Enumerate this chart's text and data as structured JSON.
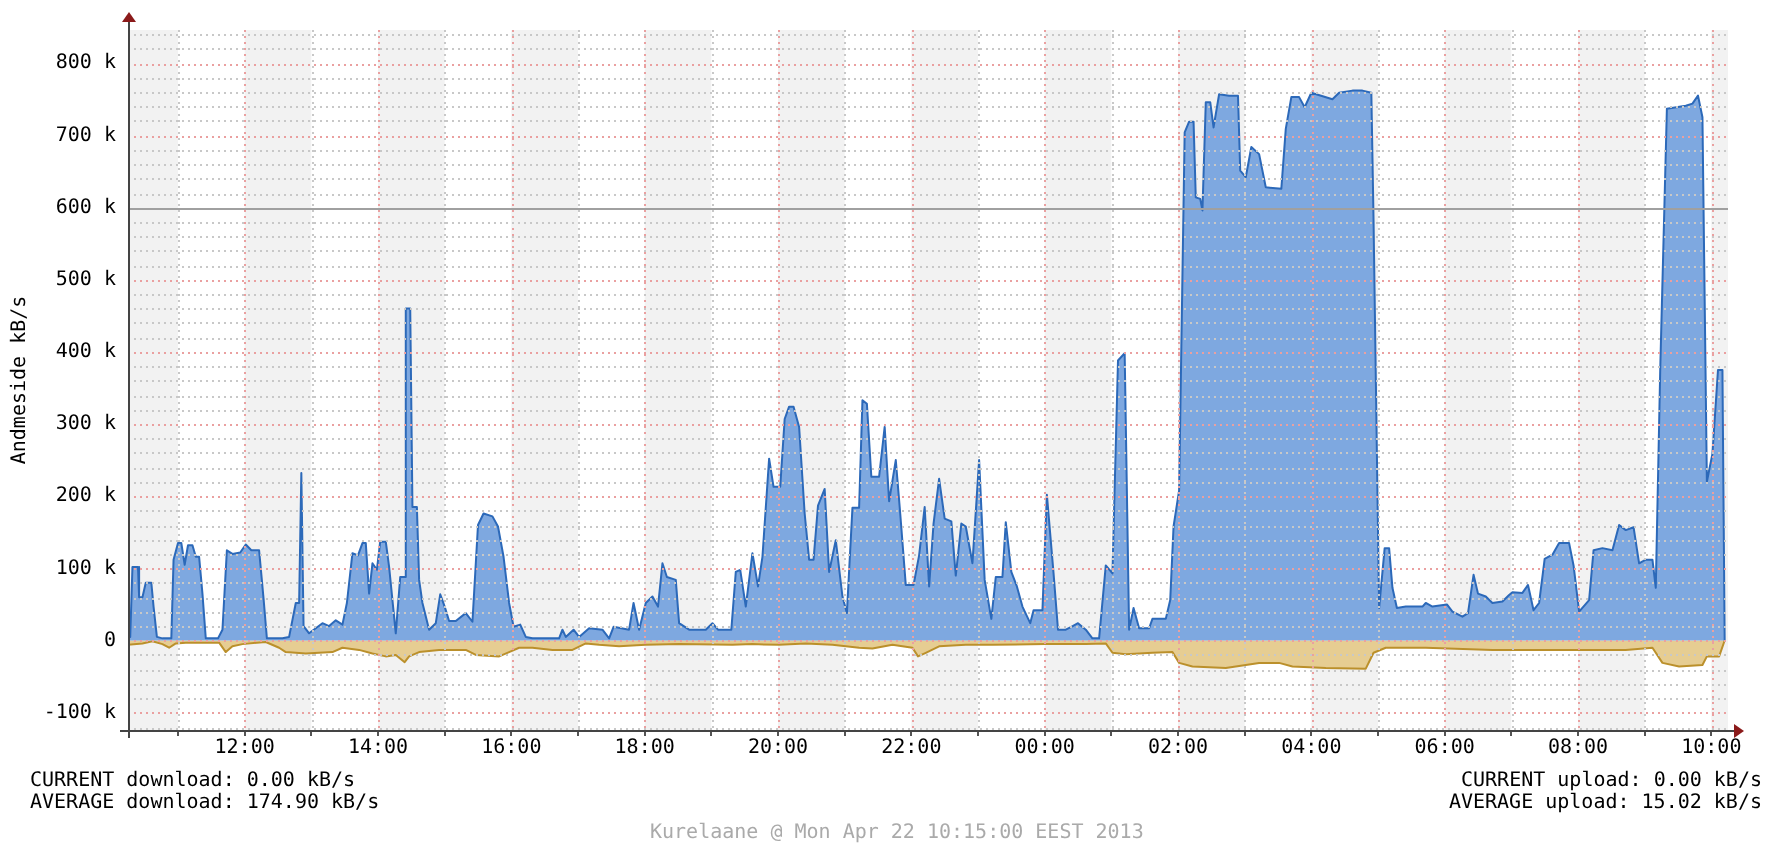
{
  "chart_data": {
    "type": "area",
    "ylabel": "Andmeside kB/s",
    "grid": true,
    "marker": "none",
    "xlim": [
      "2013-04-21T10:15",
      "2013-04-22T10:15"
    ],
    "xticks": [
      {
        "value": "2013-04-21T11:00",
        "label": null
      },
      {
        "value": "2013-04-21T12:00",
        "label": "12:00"
      },
      {
        "value": "2013-04-21T13:00",
        "label": null
      },
      {
        "value": "2013-04-21T14:00",
        "label": "14:00"
      },
      {
        "value": "2013-04-21T15:00",
        "label": null
      },
      {
        "value": "2013-04-21T16:00",
        "label": "16:00"
      },
      {
        "value": "2013-04-21T17:00",
        "label": null
      },
      {
        "value": "2013-04-21T18:00",
        "label": "18:00"
      },
      {
        "value": "2013-04-21T19:00",
        "label": null
      },
      {
        "value": "2013-04-21T20:00",
        "label": "20:00"
      },
      {
        "value": "2013-04-21T21:00",
        "label": null
      },
      {
        "value": "2013-04-21T22:00",
        "label": "22:00"
      },
      {
        "value": "2013-04-21T23:00",
        "label": null
      },
      {
        "value": "2013-04-22T00:00",
        "label": "00:00"
      },
      {
        "value": "2013-04-22T01:00",
        "label": null
      },
      {
        "value": "2013-04-22T02:00",
        "label": "02:00"
      },
      {
        "value": "2013-04-22T03:00",
        "label": null
      },
      {
        "value": "2013-04-22T04:00",
        "label": "04:00"
      },
      {
        "value": "2013-04-22T05:00",
        "label": null
      },
      {
        "value": "2013-04-22T06:00",
        "label": "06:00"
      },
      {
        "value": "2013-04-22T07:00",
        "label": null
      },
      {
        "value": "2013-04-22T08:00",
        "label": "08:00"
      },
      {
        "value": "2013-04-22T09:00",
        "label": null
      },
      {
        "value": "2013-04-22T10:00",
        "label": "10:00"
      }
    ],
    "ylim": [
      -124000,
      846000
    ],
    "yticks": [
      {
        "value": -120000,
        "label": null
      },
      {
        "value": -100000,
        "label": "-100 k"
      },
      {
        "value": -80000,
        "label": null
      },
      {
        "value": -60000,
        "label": null
      },
      {
        "value": -40000,
        "label": null
      },
      {
        "value": -20000,
        "label": null
      },
      0,
      {
        "value": 20000,
        "label": null
      },
      {
        "value": 40000,
        "label": null
      },
      {
        "value": 60000,
        "label": null
      },
      {
        "value": 80000,
        "label": null
      },
      {
        "value": 100000,
        "label": "100 k"
      },
      {
        "value": 120000,
        "label": null
      },
      {
        "value": 140000,
        "label": null
      },
      {
        "value": 160000,
        "label": null
      },
      {
        "value": 180000,
        "label": null
      },
      {
        "value": 200000,
        "label": "200 k"
      },
      {
        "value": 220000,
        "label": null
      },
      {
        "value": 240000,
        "label": null
      },
      {
        "value": 260000,
        "label": null
      },
      {
        "value": 280000,
        "label": null
      },
      {
        "value": 300000,
        "label": "300 k"
      },
      {
        "value": 320000,
        "label": null
      },
      {
        "value": 340000,
        "label": null
      },
      {
        "value": 360000,
        "label": null
      },
      {
        "value": 380000,
        "label": null
      },
      {
        "value": 400000,
        "label": "400 k"
      },
      {
        "value": 420000,
        "label": null
      },
      {
        "value": 440000,
        "label": null
      },
      {
        "value": 460000,
        "label": null
      },
      {
        "value": 480000,
        "label": null
      },
      {
        "value": 500000,
        "label": "500 k"
      },
      {
        "value": 520000,
        "label": null
      },
      {
        "value": 540000,
        "label": null
      },
      {
        "value": 560000,
        "label": null
      },
      {
        "value": 580000,
        "label": null
      },
      {
        "value": 600000,
        "label": "600 k"
      },
      {
        "value": 620000,
        "label": null
      },
      {
        "value": 640000,
        "label": null
      },
      {
        "value": 660000,
        "label": null
      },
      {
        "value": 680000,
        "label": null
      },
      {
        "value": 700000,
        "label": "700 k"
      },
      {
        "value": 720000,
        "label": null
      },
      {
        "value": 740000,
        "label": null
      },
      {
        "value": 760000,
        "label": null
      },
      {
        "value": 780000,
        "label": null
      },
      {
        "value": 800000,
        "label": "800 k"
      },
      {
        "value": 820000,
        "label": null
      },
      {
        "value": 840000,
        "label": null
      }
    ],
    "bands": [
      {
        "axis": "x",
        "from": "2013-04-21T10:15",
        "to": "2013-04-21T11:00",
        "color": "#f2f2f2"
      },
      {
        "axis": "x",
        "from": "2013-04-21T12:00",
        "to": "2013-04-21T13:00",
        "color": "#f2f2f2"
      },
      {
        "axis": "x",
        "from": "2013-04-21T14:00",
        "to": "2013-04-21T15:00",
        "color": "#f2f2f2"
      },
      {
        "axis": "x",
        "from": "2013-04-21T16:00",
        "to": "2013-04-21T17:00",
        "color": "#f2f2f2"
      },
      {
        "axis": "x",
        "from": "2013-04-21T18:00",
        "to": "2013-04-21T19:00",
        "color": "#f2f2f2"
      },
      {
        "axis": "x",
        "from": "2013-04-21T20:00",
        "to": "2013-04-21T21:00",
        "color": "#f2f2f2"
      },
      {
        "axis": "x",
        "from": "2013-04-21T22:00",
        "to": "2013-04-21T23:00",
        "color": "#f2f2f2"
      },
      {
        "axis": "x",
        "from": "2013-04-22T00:00",
        "to": "2013-04-22T01:00",
        "color": "#f2f2f2"
      },
      {
        "axis": "x",
        "from": "2013-04-22T02:00",
        "to": "2013-04-22T03:00",
        "color": "#f2f2f2"
      },
      {
        "axis": "x",
        "from": "2013-04-22T04:00",
        "to": "2013-04-22T05:00",
        "color": "#f2f2f2"
      },
      {
        "axis": "x",
        "from": "2013-04-22T06:00",
        "to": "2013-04-22T07:00",
        "color": "#f2f2f2"
      },
      {
        "axis": "x",
        "from": "2013-04-22T08:00",
        "to": "2013-04-22T09:00",
        "color": "#f2f2f2"
      },
      {
        "axis": "x",
        "from": "2013-04-22T10:00",
        "to": "2013-04-22T10:15",
        "color": "#f2f2f2"
      }
    ],
    "ref_lines": [
      {
        "axis": "y",
        "value": 600000,
        "color": "#a0a0a0"
      }
    ],
    "series": [
      {
        "color": "#7ea8e0",
        "x": [
          "2013-04-21T10:15",
          "2013-04-21T10:17",
          "2013-04-21T10:19",
          "2013-04-21T10:24",
          "2013-04-21T10:25",
          "2013-04-21T10:28",
          "2013-04-21T10:31",
          "2013-04-21T10:36",
          "2013-04-21T10:38",
          "2013-04-21T10:41",
          "2013-04-21T10:46",
          "2013-04-21T10:54",
          "2013-04-21T10:56",
          "2013-04-21T11:00",
          "2013-04-21T11:03",
          "2013-04-21T11:06",
          "2013-04-21T11:09",
          "2013-04-21T11:13",
          "2013-04-21T11:16",
          "2013-04-21T11:19",
          "2013-04-21T11:22",
          "2013-04-21T11:25",
          "2013-04-21T11:36",
          "2013-04-21T11:40",
          "2013-04-21T11:44",
          "2013-04-21T11:49",
          "2013-04-21T11:56",
          "2013-04-21T12:01",
          "2013-04-21T12:06",
          "2013-04-21T12:13",
          "2013-04-21T12:17",
          "2013-04-21T12:20",
          "2013-04-21T12:34",
          "2013-04-21T12:40",
          "2013-04-21T12:46",
          "2013-04-21T12:49",
          "2013-04-21T12:51",
          "2013-04-21T12:53",
          "2013-04-21T12:58",
          "2013-04-21T13:10",
          "2013-04-21T13:16",
          "2013-04-21T13:22",
          "2013-04-21T13:28",
          "2013-04-21T13:32",
          "2013-04-21T13:37",
          "2013-04-21T13:42",
          "2013-04-21T13:46",
          "2013-04-21T13:49",
          "2013-04-21T13:52",
          "2013-04-21T13:55",
          "2013-04-21T13:59",
          "2013-04-21T14:02",
          "2013-04-21T14:07",
          "2013-04-21T14:10",
          "2013-04-21T14:16",
          "2013-04-21T14:20",
          "2013-04-21T14:24",
          "2013-04-21T14:25",
          "2013-04-21T14:29",
          "2013-04-21T14:31",
          "2013-04-21T14:35",
          "2013-04-21T14:37",
          "2013-04-21T14:40",
          "2013-04-21T14:46",
          "2013-04-21T14:52",
          "2013-04-21T14:56",
          "2013-04-21T15:00",
          "2013-04-21T15:04",
          "2013-04-21T15:10",
          "2013-04-21T15:19",
          "2013-04-21T15:25",
          "2013-04-21T15:30",
          "2013-04-21T15:35",
          "2013-04-21T15:43",
          "2013-04-21T15:48",
          "2013-04-21T15:53",
          "2013-04-21T15:58",
          "2013-04-21T16:02",
          "2013-04-21T16:08",
          "2013-04-21T16:13",
          "2013-04-21T16:19",
          "2013-04-21T16:43",
          "2013-04-21T16:46",
          "2013-04-21T16:49",
          "2013-04-21T16:56",
          "2013-04-21T17:01",
          "2013-04-21T17:10",
          "2013-04-21T17:22",
          "2013-04-21T17:28",
          "2013-04-21T17:32",
          "2013-04-21T17:46",
          "2013-04-21T17:50",
          "2013-04-21T17:55",
          "2013-04-21T18:01",
          "2013-04-21T18:07",
          "2013-04-21T18:12",
          "2013-04-21T18:16",
          "2013-04-21T18:20",
          "2013-04-21T18:28",
          "2013-04-21T18:31",
          "2013-04-21T18:40",
          "2013-04-21T18:55",
          "2013-04-21T19:01",
          "2013-04-21T19:06",
          "2013-04-21T19:18",
          "2013-04-21T19:22",
          "2013-04-21T19:26",
          "2013-04-21T19:31",
          "2013-04-21T19:37",
          "2013-04-21T19:42",
          "2013-04-21T19:46",
          "2013-04-21T19:52",
          "2013-04-21T19:56",
          "2013-04-21T20:02",
          "2013-04-21T20:06",
          "2013-04-21T20:10",
          "2013-04-21T20:14",
          "2013-04-21T20:19",
          "2013-04-21T20:24",
          "2013-04-21T20:28",
          "2013-04-21T20:32",
          "2013-04-21T20:36",
          "2013-04-21T20:42",
          "2013-04-21T20:46",
          "2013-04-21T20:52",
          "2013-04-21T20:58",
          "2013-04-21T21:02",
          "2013-04-21T21:07",
          "2013-04-21T21:13",
          "2013-04-21T21:16",
          "2013-04-21T21:20",
          "2013-04-21T21:24",
          "2013-04-21T21:31",
          "2013-04-21T21:36",
          "2013-04-21T21:40",
          "2013-04-21T21:46",
          "2013-04-21T21:50",
          "2013-04-21T21:55",
          "2013-04-21T22:02",
          "2013-04-21T22:07",
          "2013-04-21T22:12",
          "2013-04-21T22:16",
          "2013-04-21T22:20",
          "2013-04-21T22:25",
          "2013-04-21T22:30",
          "2013-04-21T22:36",
          "2013-04-21T22:40",
          "2013-04-21T22:45",
          "2013-04-21T22:49",
          "2013-04-21T22:55",
          "2013-04-21T23:01",
          "2013-04-21T23:06",
          "2013-04-21T23:12",
          "2013-04-21T23:16",
          "2013-04-21T23:22",
          "2013-04-21T23:25",
          "2013-04-21T23:30",
          "2013-04-21T23:35",
          "2013-04-21T23:40",
          "2013-04-21T23:47",
          "2013-04-21T23:50",
          "2013-04-21T23:58",
          "2013-04-22T00:02",
          "2013-04-22T00:08",
          "2013-04-22T00:12",
          "2013-04-22T00:19",
          "2013-04-22T00:24",
          "2013-04-22T00:30",
          "2013-04-22T00:37",
          "2013-04-22T00:43",
          "2013-04-22T00:49",
          "2013-04-22T00:55",
          "2013-04-22T01:01",
          "2013-04-22T01:06",
          "2013-04-22T01:12",
          "2013-04-22T01:16",
          "2013-04-22T01:20",
          "2013-04-22T01:25",
          "2013-04-22T01:34",
          "2013-04-22T01:37",
          "2013-04-22T01:49",
          "2013-04-22T01:53",
          "2013-04-22T01:56",
          "2013-04-22T02:01",
          "2013-04-22T02:06",
          "2013-04-22T02:10",
          "2013-04-22T02:14",
          "2013-04-22T02:16",
          "2013-04-22T02:20",
          "2013-04-22T02:22",
          "2013-04-22T02:25",
          "2013-04-22T02:29",
          "2013-04-22T02:32",
          "2013-04-22T02:37",
          "2013-04-22T02:46",
          "2013-04-22T02:54",
          "2013-04-22T02:56",
          "2013-04-22T03:01",
          "2013-04-22T03:06",
          "2013-04-22T03:13",
          "2013-04-22T03:19",
          "2013-04-22T03:33",
          "2013-04-22T03:37",
          "2013-04-22T03:42",
          "2013-04-22T03:49",
          "2013-04-22T03:54",
          "2013-04-22T04:00",
          "2013-04-22T04:19",
          "2013-04-22T04:25",
          "2013-04-22T04:37",
          "2013-04-22T04:46",
          "2013-04-22T04:54",
          "2013-04-22T04:56",
          "2013-04-22T05:01",
          "2013-04-22T05:06",
          "2013-04-22T05:10",
          "2013-04-22T05:13",
          "2013-04-22T05:17",
          "2013-04-22T05:25",
          "2013-04-22T05:40",
          "2013-04-22T05:43",
          "2013-04-22T05:49",
          "2013-04-22T06:02",
          "2013-04-22T06:07",
          "2013-04-22T06:16",
          "2013-04-22T06:21",
          "2013-04-22T06:26",
          "2013-04-22T06:30",
          "2013-04-22T06:37",
          "2013-04-22T06:43",
          "2013-04-22T06:52",
          "2013-04-22T06:58",
          "2013-04-22T07:01",
          "2013-04-22T07:10",
          "2013-04-22T07:15",
          "2013-04-22T07:20",
          "2013-04-22T07:25",
          "2013-04-22T07:30",
          "2013-04-22T07:37",
          "2013-04-22T07:43",
          "2013-04-22T07:52",
          "2013-04-22T07:56",
          "2013-04-22T08:01",
          "2013-04-22T08:10",
          "2013-04-22T08:14",
          "2013-04-22T08:22",
          "2013-04-22T08:31",
          "2013-04-22T08:37",
          "2013-04-22T08:43",
          "2013-04-22T08:50",
          "2013-04-22T08:55",
          "2013-04-22T09:01",
          "2013-04-22T09:07",
          "2013-04-22T09:10",
          "2013-04-22T09:14",
          "2013-04-22T09:20",
          "2013-04-22T09:37",
          "2013-04-22T09:43",
          "2013-04-22T09:48",
          "2013-04-22T09:52",
          "2013-04-22T09:56",
          "2013-04-22T10:01",
          "2013-04-22T10:06",
          "2013-04-22T10:10",
          "2013-04-22T10:12"
        ],
        "values": [
          5000,
          5000,
          102000,
          102000,
          60000,
          60000,
          80000,
          80000,
          47000,
          5000,
          3000,
          3000,
          112000,
          135000,
          135000,
          105000,
          132000,
          132000,
          116000,
          116000,
          65000,
          3000,
          3000,
          15000,
          125000,
          120000,
          122000,
          133000,
          125000,
          125000,
          58000,
          3000,
          3000,
          5000,
          52000,
          52000,
          232000,
          20000,
          10000,
          24000,
          20000,
          28000,
          22000,
          52000,
          121000,
          118000,
          135000,
          135000,
          65000,
          107000,
          98000,
          137000,
          137000,
          102000,
          10000,
          88000,
          88000,
          460000,
          460000,
          185000,
          185000,
          84000,
          52000,
          15000,
          24000,
          64000,
          47000,
          27000,
          27000,
          38000,
          26000,
          160000,
          176000,
          172000,
          158000,
          116000,
          52000,
          19000,
          22000,
          5000,
          3000,
          3000,
          15000,
          5000,
          15000,
          5000,
          17000,
          15000,
          3000,
          19000,
          15000,
          52000,
          15000,
          52000,
          61000,
          47000,
          107000,
          88000,
          84000,
          24000,
          15000,
          15000,
          24000,
          15000,
          15000,
          95000,
          98000,
          47000,
          121000,
          75000,
          116000,
          252000,
          213000,
          213000,
          307000,
          324000,
          324000,
          296000,
          176000,
          112000,
          112000,
          187000,
          210000,
          95000,
          139000,
          61000,
          38000,
          184000,
          184000,
          333000,
          328000,
          227000,
          227000,
          296000,
          193000,
          250000,
          176000,
          77000,
          77000,
          118000,
          185000,
          75000,
          162000,
          224000,
          169000,
          165000,
          90000,
          162000,
          158000,
          107000,
          250000,
          84000,
          30000,
          88000,
          88000,
          164000,
          95000,
          75000,
          47000,
          24000,
          42000,
          42000,
          202000,
          93000,
          15000,
          15000,
          19000,
          24000,
          15000,
          3000,
          3000,
          104000,
          93000,
          388000,
          398000,
          15000,
          45000,
          17000,
          17000,
          30000,
          30000,
          56000,
          158000,
          208000,
          704000,
          719000,
          719000,
          614000,
          612000,
          596000,
          746000,
          746000,
          711000,
          757000,
          755000,
          755000,
          651000,
          642000,
          684000,
          674000,
          628000,
          626000,
          709000,
          753000,
          753000,
          739000,
          759000,
          750000,
          759000,
          762000,
          762000,
          759000,
          582000,
          45000,
          128000,
          128000,
          73000,
          45000,
          47000,
          47000,
          52000,
          47000,
          50000,
          40000,
          33000,
          38000,
          91000,
          65000,
          61000,
          52000,
          54000,
          63000,
          67000,
          66000,
          77000,
          42000,
          52000,
          113000,
          119000,
          135000,
          135000,
          104000,
          40000,
          56000,
          125000,
          128000,
          125000,
          160000,
          153000,
          157000,
          107000,
          112000,
          112000,
          73000,
          375000,
          737000,
          741000,
          744000,
          755000,
          725000,
          220000,
          259000,
          375000,
          375000,
          0
        ]
      },
      {
        "color": "#e6cd92",
        "x": [
          "2013-04-21T10:15",
          "2013-04-21T10:28",
          "2013-04-21T10:37",
          "2013-04-21T10:46",
          "2013-04-21T10:52",
          "2013-04-21T10:58",
          "2013-04-21T11:07",
          "2013-04-21T11:37",
          "2013-04-21T11:43",
          "2013-04-21T11:49",
          "2013-04-21T11:58",
          "2013-04-21T12:19",
          "2013-04-21T12:31",
          "2013-04-21T12:37",
          "2013-04-21T12:55",
          "2013-04-21T13:19",
          "2013-04-21T13:28",
          "2013-04-21T13:43",
          "2013-04-21T13:55",
          "2013-04-21T14:07",
          "2013-04-21T14:16",
          "2013-04-21T14:24",
          "2013-04-21T14:28",
          "2013-04-21T14:37",
          "2013-04-21T14:55",
          "2013-04-21T15:19",
          "2013-04-21T15:28",
          "2013-04-21T15:49",
          "2013-04-21T15:58",
          "2013-04-21T16:07",
          "2013-04-21T16:19",
          "2013-04-21T16:37",
          "2013-04-21T16:55",
          "2013-04-21T17:07",
          "2013-04-21T17:19",
          "2013-04-21T17:37",
          "2013-04-21T18:01",
          "2013-04-21T18:31",
          "2013-04-21T19:19",
          "2013-04-21T19:37",
          "2013-04-21T20:01",
          "2013-04-21T20:25",
          "2013-04-21T20:49",
          "2013-04-21T21:13",
          "2013-04-21T21:25",
          "2013-04-21T21:43",
          "2013-04-21T22:01",
          "2013-04-21T22:06",
          "2013-04-21T22:13",
          "2013-04-21T22:25",
          "2013-04-21T22:49",
          "2013-04-21T23:13",
          "2013-04-22T00:01",
          "2013-04-22T00:37",
          "2013-04-22T00:55",
          "2013-04-22T01:01",
          "2013-04-22T01:13",
          "2013-04-22T01:37",
          "2013-04-22T01:55",
          "2013-04-22T02:01",
          "2013-04-22T02:13",
          "2013-04-22T02:43",
          "2013-04-22T03:13",
          "2013-04-22T03:31",
          "2013-04-22T03:43",
          "2013-04-22T04:13",
          "2013-04-22T04:49",
          "2013-04-22T04:56",
          "2013-04-22T05:07",
          "2013-04-22T05:43",
          "2013-04-22T06:43",
          "2013-04-22T07:43",
          "2013-04-22T08:43",
          "2013-04-22T09:07",
          "2013-04-22T09:16",
          "2013-04-22T09:31",
          "2013-04-22T09:52",
          "2013-04-22T09:56",
          "2013-04-22T10:07",
          "2013-04-22T10:12"
        ],
        "values": [
          -6000,
          -4000,
          -1000,
          -5000,
          -10000,
          -4000,
          -3000,
          -3000,
          -16000,
          -8000,
          -5000,
          -2000,
          -10000,
          -16000,
          -18000,
          -16000,
          -10000,
          -13000,
          -18000,
          -22000,
          -20000,
          -30000,
          -22000,
          -16000,
          -13000,
          -13000,
          -20000,
          -22000,
          -16000,
          -10000,
          -10000,
          -13000,
          -13000,
          -4000,
          -6000,
          -8000,
          -6000,
          -5000,
          -6000,
          -5000,
          -6000,
          -4000,
          -6000,
          -10000,
          -11000,
          -6000,
          -10000,
          -22000,
          -17000,
          -8000,
          -6000,
          -6000,
          -5000,
          -5000,
          -4000,
          -17000,
          -19000,
          -17000,
          -16000,
          -31000,
          -36000,
          -38000,
          -31000,
          -31000,
          -36000,
          -38000,
          -39000,
          -17000,
          -10000,
          -10000,
          -13000,
          -13000,
          -13000,
          -10000,
          -31000,
          -36000,
          -34000,
          -22000,
          -22000,
          0
        ]
      }
    ],
    "annotations": [
      "CURRENT download: 0.00 kB/s",
      "AVERAGE download: 174.90 kB/s",
      "CURRENT upload: 0.00 kB/s",
      "AVERAGE upload: 15.02 kB/s",
      "Kurelaane @ Mon Apr 22 10:15:00 EEST 2013"
    ]
  }
}
